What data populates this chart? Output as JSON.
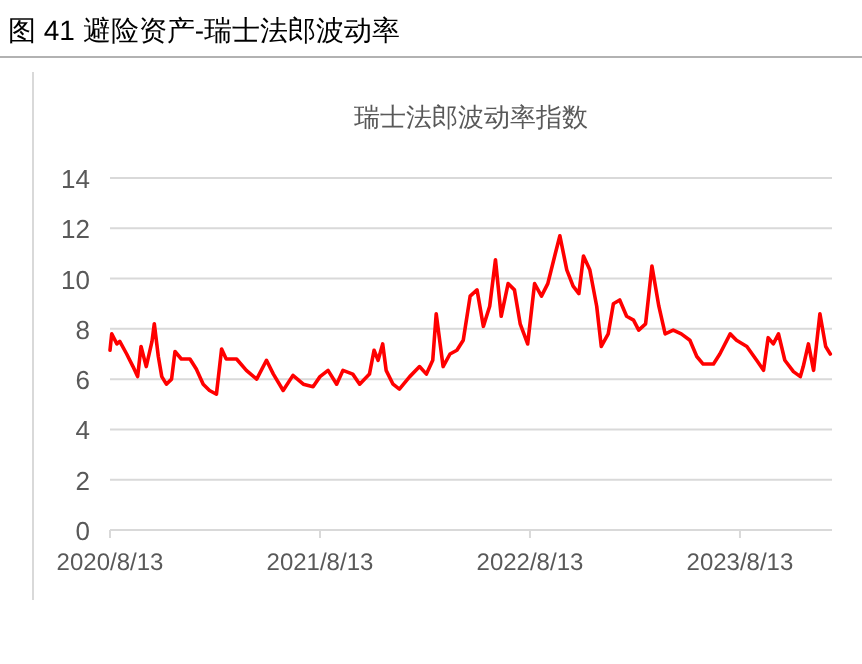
{
  "chart_data": {
    "type": "line",
    "title": "图 41   避险资产-瑞士法郎波动率",
    "subtitle": "瑞士法郎波动率指数",
    "x": [
      "2020-08-13",
      "2020-08-16",
      "2020-08-25",
      "2020-08-30",
      "2020-09-11",
      "2020-09-22",
      "2020-09-30",
      "2020-10-06",
      "2020-10-15",
      "2020-10-25",
      "2020-10-29",
      "2020-11-05",
      "2020-11-11",
      "2020-11-19",
      "2020-11-28",
      "2020-12-04",
      "2020-12-15",
      "2020-12-30",
      "2021-01-10",
      "2021-01-22",
      "2021-02-02",
      "2021-02-14",
      "2021-02-23",
      "2021-03-03",
      "2021-03-21",
      "2021-04-07",
      "2021-04-25",
      "2021-05-12",
      "2021-05-24",
      "2021-06-10",
      "2021-06-27",
      "2021-07-15",
      "2021-08-01",
      "2021-08-13",
      "2021-08-27",
      "2021-09-11",
      "2021-09-22",
      "2021-10-09",
      "2021-10-21",
      "2021-11-07",
      "2021-11-15",
      "2021-11-22",
      "2021-11-30",
      "2021-12-06",
      "2021-12-18",
      "2021-12-29",
      "2022-01-16",
      "2022-02-02",
      "2022-02-14",
      "2022-02-25",
      "2022-03-03",
      "2022-03-15",
      "2022-03-27",
      "2022-04-08",
      "2022-04-19",
      "2022-05-01",
      "2022-05-13",
      "2022-05-24",
      "2022-06-04",
      "2022-06-14",
      "2022-06-24",
      "2022-07-06",
      "2022-07-17",
      "2022-07-27",
      "2022-08-09",
      "2022-08-21",
      "2022-09-02",
      "2022-09-13",
      "2022-09-25",
      "2022-10-04",
      "2022-10-16",
      "2022-10-27",
      "2022-11-06",
      "2022-11-14",
      "2022-11-25",
      "2022-12-07",
      "2022-12-15",
      "2022-12-27",
      "2023-01-05",
      "2023-01-16",
      "2023-01-28",
      "2023-02-09",
      "2023-02-18",
      "2023-03-02",
      "2023-03-13",
      "2023-03-25",
      "2023-04-05",
      "2023-04-19",
      "2023-05-03",
      "2023-05-18",
      "2023-05-30",
      "2023-06-10",
      "2023-06-28",
      "2023-07-09",
      "2023-07-27",
      "2023-08-07",
      "2023-08-25",
      "2023-09-11",
      "2023-09-23",
      "2023-10-01",
      "2023-10-10",
      "2023-10-19",
      "2023-10-30",
      "2023-11-14",
      "2023-11-26",
      "2023-12-01",
      "2023-12-10",
      "2023-12-19",
      "2023-12-30",
      "2024-01-09",
      "2024-01-17"
    ],
    "series": [
      {
        "color": "#ff0000",
        "values": [
          7.15,
          7.8,
          7.4,
          7.5,
          7.0,
          6.5,
          6.1,
          7.3,
          6.5,
          7.5,
          8.2,
          6.9,
          6.1,
          5.8,
          6.0,
          7.1,
          6.8,
          6.8,
          6.4,
          5.8,
          5.55,
          5.4,
          7.2,
          6.8,
          6.8,
          6.35,
          6.0,
          6.75,
          6.2,
          5.55,
          6.15,
          5.8,
          5.7,
          6.1,
          6.35,
          5.8,
          6.35,
          6.2,
          5.8,
          6.2,
          7.15,
          6.75,
          7.4,
          6.35,
          5.8,
          5.6,
          6.1,
          6.5,
          6.2,
          6.75,
          8.6,
          6.5,
          7.0,
          7.15,
          7.55,
          9.3,
          9.55,
          8.1,
          8.9,
          10.75,
          8.5,
          9.8,
          9.55,
          8.2,
          7.4,
          9.8,
          9.3,
          9.8,
          10.9,
          11.7,
          10.35,
          9.7,
          9.4,
          10.9,
          10.35,
          8.9,
          7.3,
          7.8,
          9.0,
          9.15,
          8.5,
          8.35,
          7.95,
          8.2,
          10.5,
          8.9,
          7.8,
          7.95,
          7.8,
          7.55,
          6.9,
          6.6,
          6.6,
          7.0,
          7.8,
          7.55,
          7.3,
          6.75,
          6.35,
          7.65,
          7.4,
          7.8,
          6.75,
          6.3,
          6.1,
          6.5,
          7.4,
          6.35,
          8.6,
          7.3,
          7.0
        ]
      }
    ],
    "xlim": [
      "2020-08-13",
      "2024-01-20"
    ],
    "xticks": [
      {
        "value": "2020-08-13",
        "label": "2020/8/13"
      },
      {
        "value": "2021-08-13",
        "label": "2021/8/13"
      },
      {
        "value": "2022-08-13",
        "label": "2022/8/13"
      },
      {
        "value": "2023-08-13",
        "label": "2023/8/13"
      }
    ],
    "ylim": [
      0,
      14
    ],
    "yticks": [
      0,
      2,
      4,
      6,
      8,
      10,
      12,
      14
    ],
    "grid": "y",
    "marker": "none",
    "line_style": "solid"
  }
}
